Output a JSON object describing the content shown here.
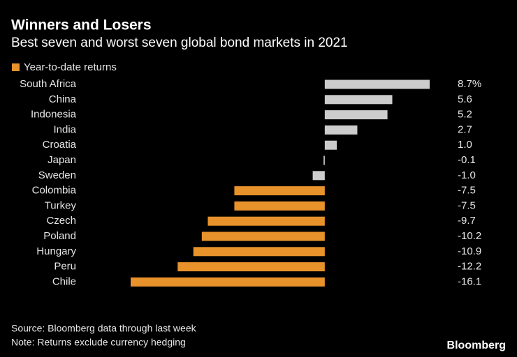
{
  "chart_data": {
    "type": "bar",
    "orientation": "horizontal",
    "title": "Winners and Losers",
    "subtitle": "Best seven and worst seven global bond markets in 2021",
    "categories": [
      "South Africa",
      "China",
      "Indonesia",
      "India",
      "Croatia",
      "Japan",
      "Sweden",
      "Colombia",
      "Turkey",
      "Czech",
      "Poland",
      "Hungary",
      "Peru",
      "Chile"
    ],
    "series": [
      {
        "name": "Year-to-date returns",
        "color": "#e8922b",
        "values": [
          8.7,
          5.6,
          5.2,
          2.7,
          1.0,
          -0.1,
          -1.0,
          -7.5,
          -7.5,
          -9.7,
          -10.2,
          -10.9,
          -12.2,
          -16.1
        ],
        "value_labels": [
          "8.7%",
          "5.6",
          "5.2",
          "2.7",
          "1.0",
          "-0.1",
          "-1.0",
          "-7.5",
          "-7.5",
          "-9.7",
          "-10.2",
          "-10.9",
          "-12.2",
          "-16.1"
        ],
        "colors": [
          "#cccccc",
          "#cccccc",
          "#cccccc",
          "#cccccc",
          "#cccccc",
          "#cccccc",
          "#cccccc",
          "#e8922b",
          "#e8922b",
          "#e8922b",
          "#e8922b",
          "#e8922b",
          "#e8922b",
          "#e8922b"
        ]
      }
    ],
    "source": "Source: Bloomberg data through last week",
    "note": "Note: Returns exclude currency hedging",
    "logo": "Bloomberg"
  }
}
